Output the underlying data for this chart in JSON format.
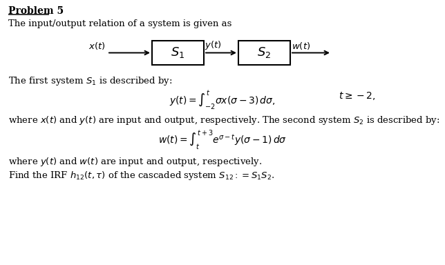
{
  "background_color": "#ffffff",
  "text_color": "#000000",
  "title_text": "Problem 5",
  "line1": "The input/output relation of a system is given as",
  "block1_label": "$S_1$",
  "block2_label": "$S_2$",
  "input_label": "$x(t)$",
  "mid_label": "$y(t)$",
  "output_label": "$w(t)$",
  "desc1": "The first system $S_1$ is described by:",
  "desc2": "where $x(t)$ and $y(t)$ are input and output, respectively. The second system $S_2$ is described by:",
  "desc3": "where $y(t)$ and $w(t)$ are input and output, respectively.",
  "desc4": "Find the IRF $h_{12}(t, \\tau)$ of the cascaded system $S_{12} := S_1S_2$.",
  "font_size_title": 10,
  "font_size_body": 9.5,
  "font_size_eq": 10,
  "font_size_block": 13
}
